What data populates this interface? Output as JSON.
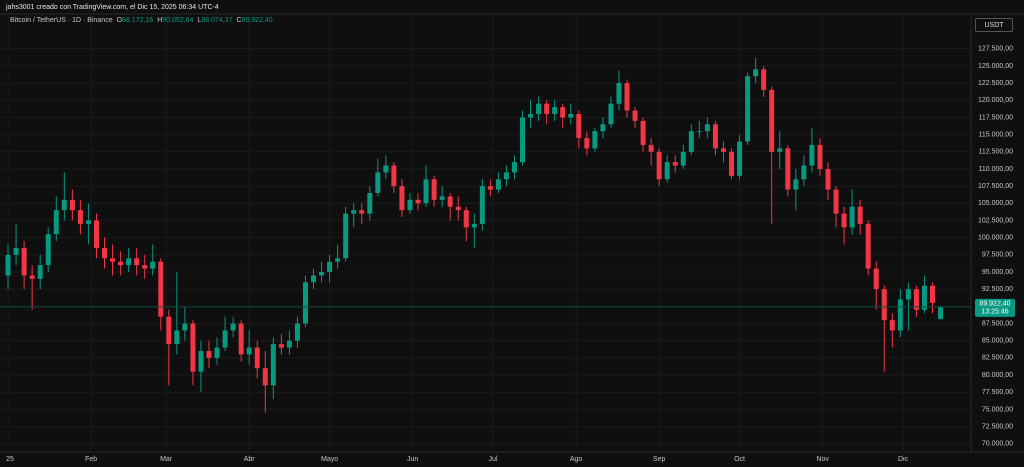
{
  "header": {
    "attribution": "jahs3001 creado con TradingView.com, el Dic 15, 2025 06:34 UTC-4",
    "currency_button": "USDT"
  },
  "chart_data": {
    "type": "candlestick",
    "title": "Bitcoin / TetherUS · 1D · Binance",
    "legend": [
      {
        "key": "O",
        "value": "88.172,16"
      },
      {
        "key": "H",
        "value": "90.052,64"
      },
      {
        "key": "L",
        "value": "88.074,37"
      },
      {
        "key": "C",
        "value": "89.922,40"
      }
    ],
    "colors": {
      "up": "#089981",
      "down": "#f23645"
    },
    "x": [
      0,
      3,
      6,
      9,
      12,
      15,
      18,
      21,
      24,
      27,
      30,
      33,
      36,
      39,
      42,
      45,
      48,
      51,
      54,
      57,
      60,
      63,
      66,
      69,
      72,
      75,
      78,
      81,
      84,
      87,
      90,
      93,
      96,
      99,
      102,
      105,
      108,
      111,
      114,
      117,
      120,
      123,
      126,
      129,
      132,
      135,
      138,
      141,
      144,
      147,
      150,
      153,
      156,
      159,
      162,
      165,
      168,
      171,
      174,
      177,
      180,
      183,
      186,
      189,
      192,
      195,
      198,
      201,
      204,
      207,
      210,
      213,
      216,
      219,
      222,
      225,
      228,
      231,
      234,
      237,
      240,
      243,
      246,
      249,
      252,
      255,
      258,
      261,
      264,
      267,
      270,
      273,
      276,
      279,
      282,
      285,
      288,
      291,
      294,
      297,
      300,
      303,
      306,
      309,
      312,
      315,
      318,
      321,
      324,
      327,
      330,
      333,
      336,
      339,
      342,
      345,
      348
    ],
    "open": [
      94500,
      97500,
      98500,
      94500,
      94000,
      96000,
      100500,
      104000,
      105500,
      104000,
      102000,
      102500,
      98500,
      97000,
      96500,
      96000,
      97000,
      96000,
      95500,
      96500,
      88500,
      84500,
      86500,
      87500,
      80500,
      83500,
      82500,
      84000,
      86500,
      87500,
      83000,
      84000,
      81000,
      78500,
      84500,
      84000,
      85000,
      87500,
      93500,
      94500,
      95000,
      96500,
      97000,
      103500,
      104000,
      103500,
      106500,
      109500,
      110500,
      107500,
      104000,
      105500,
      105000,
      108500,
      105500,
      106000,
      104500,
      104000,
      101500,
      102000,
      107500,
      107000,
      108500,
      109500,
      111000,
      117500,
      118000,
      119500,
      118000,
      119000,
      117500,
      118000,
      114500,
      113000,
      115500,
      116500,
      119500,
      122500,
      118500,
      117000,
      113500,
      112500,
      108500,
      111000,
      110500,
      112500,
      115500,
      115500,
      116500,
      113000,
      112500,
      109000,
      114000,
      123500,
      124500,
      121500,
      112500,
      113000,
      107000,
      108500,
      110500,
      113500,
      110000,
      107000,
      103500,
      101500,
      104500,
      102000,
      95500,
      92500,
      88000,
      86500,
      91000,
      92500,
      89500,
      93000,
      88172.16
    ],
    "high": [
      99000,
      102000,
      99500,
      96000,
      97500,
      101500,
      106000,
      109500,
      107000,
      105500,
      105000,
      103500,
      100000,
      99000,
      98000,
      98500,
      98500,
      97500,
      99000,
      97000,
      89500,
      95000,
      90000,
      88000,
      85000,
      85000,
      85500,
      88500,
      88500,
      88000,
      86500,
      85000,
      83500,
      85500,
      86000,
      86500,
      88500,
      94500,
      95500,
      96500,
      97500,
      99000,
      104500,
      105000,
      105000,
      107500,
      111500,
      112000,
      111000,
      108500,
      106500,
      106500,
      110500,
      109000,
      107500,
      106500,
      106000,
      104500,
      103500,
      108500,
      108500,
      109500,
      110500,
      112000,
      118500,
      120000,
      120500,
      120000,
      120000,
      119500,
      119500,
      118500,
      115500,
      116000,
      117500,
      120500,
      124300,
      123000,
      119000,
      117500,
      114500,
      113000,
      112000,
      112000,
      113500,
      116500,
      117000,
      117500,
      117000,
      114000,
      113000,
      115000,
      124000,
      126200,
      125000,
      122000,
      115500,
      113500,
      110000,
      112000,
      116000,
      114500,
      111000,
      107500,
      104500,
      107000,
      105500,
      102500,
      96500,
      93000,
      89000,
      92500,
      93500,
      93000,
      94500,
      93500,
      90052.64
    ],
    "low": [
      92500,
      96000,
      92500,
      89500,
      92500,
      95000,
      99500,
      102500,
      102500,
      100500,
      99000,
      97000,
      95500,
      94500,
      94500,
      95000,
      94500,
      94000,
      94500,
      86500,
      78500,
      83000,
      85000,
      78500,
      77500,
      81000,
      81500,
      83500,
      85500,
      82000,
      81500,
      79500,
      74500,
      76500,
      83000,
      83000,
      84000,
      87000,
      92500,
      93500,
      93500,
      95500,
      96500,
      101500,
      102000,
      102500,
      106000,
      108500,
      106500,
      103000,
      103500,
      104000,
      104500,
      104500,
      104500,
      102500,
      102500,
      99500,
      98500,
      101000,
      106000,
      106500,
      107500,
      108500,
      110500,
      116000,
      117000,
      116500,
      117000,
      116000,
      116500,
      113000,
      112000,
      112500,
      114500,
      116000,
      118500,
      117500,
      116000,
      112500,
      110500,
      107500,
      108000,
      109500,
      110000,
      112000,
      114500,
      114500,
      112000,
      111000,
      108500,
      108500,
      113500,
      122500,
      120500,
      102000,
      110000,
      106000,
      104000,
      107500,
      109500,
      109000,
      105500,
      101500,
      99000,
      100500,
      100500,
      94500,
      89500,
      80500,
      84000,
      85500,
      86500,
      88500,
      89000,
      89000,
      88074.37
    ],
    "close": [
      97500,
      98500,
      94500,
      94000,
      96000,
      100500,
      104000,
      105500,
      104000,
      102000,
      102500,
      98500,
      97000,
      96500,
      96000,
      97000,
      96000,
      95500,
      96500,
      88500,
      84500,
      86500,
      87500,
      80500,
      83500,
      82500,
      84000,
      86500,
      87500,
      83000,
      84000,
      81000,
      78500,
      84500,
      84000,
      85000,
      87500,
      93500,
      94500,
      95000,
      96500,
      97000,
      103500,
      104000,
      103500,
      106500,
      109500,
      110500,
      107500,
      104000,
      105500,
      105000,
      108500,
      105500,
      106000,
      104500,
      104000,
      101500,
      102000,
      107500,
      107000,
      108500,
      109500,
      111000,
      117500,
      118000,
      119500,
      118000,
      119000,
      117500,
      118000,
      114500,
      113000,
      115500,
      116500,
      119500,
      122500,
      118500,
      117000,
      113500,
      112500,
      108500,
      111000,
      110500,
      112500,
      115500,
      115500,
      116500,
      113000,
      112500,
      109000,
      114000,
      123500,
      124500,
      121500,
      112500,
      113000,
      107000,
      108500,
      110500,
      113500,
      110000,
      107000,
      103500,
      101500,
      104500,
      102000,
      95500,
      92500,
      88000,
      86500,
      91000,
      92500,
      89500,
      93000,
      90500,
      89922.4
    ],
    "xlim": [
      -3,
      359
    ],
    "xticks": [
      {
        "value": 0,
        "label": "25"
      },
      {
        "value": 31,
        "label": "Feb"
      },
      {
        "value": 59,
        "label": "Mar"
      },
      {
        "value": 90,
        "label": "Abr"
      },
      {
        "value": 120,
        "label": "Mayo"
      },
      {
        "value": 151,
        "label": "Jun"
      },
      {
        "value": 181,
        "label": "Jul"
      },
      {
        "value": 212,
        "label": "Ago"
      },
      {
        "value": 243,
        "label": "Sep"
      },
      {
        "value": 273,
        "label": "Oct"
      },
      {
        "value": 304,
        "label": "Nov"
      },
      {
        "value": 334,
        "label": "Dic"
      }
    ],
    "ylim": [
      68800,
      129500
    ],
    "yticks": [
      {
        "value": 70000,
        "label": "70.000,00"
      },
      {
        "value": 72500,
        "label": "72.500,00"
      },
      {
        "value": 75000,
        "label": "75.000,00"
      },
      {
        "value": 77500,
        "label": "77.500,00"
      },
      {
        "value": 80000,
        "label": "80.000,00"
      },
      {
        "value": 82500,
        "label": "82.500,00"
      },
      {
        "value": 85000,
        "label": "85.000,00"
      },
      {
        "value": 87500,
        "label": "87.500,00"
      },
      {
        "value": 90000,
        "label": "90.000,00"
      },
      {
        "value": 92500,
        "label": "92.500,00"
      },
      {
        "value": 95000,
        "label": "95.000,00"
      },
      {
        "value": 97500,
        "label": "97.500,00"
      },
      {
        "value": 100000,
        "label": "100.000,00"
      },
      {
        "value": 102500,
        "label": "102.500,00"
      },
      {
        "value": 105000,
        "label": "105.000,00"
      },
      {
        "value": 107500,
        "label": "107.500,00"
      },
      {
        "value": 110000,
        "label": "110.000,00"
      },
      {
        "value": 112500,
        "label": "112.500,00"
      },
      {
        "value": 115000,
        "label": "115.000,00"
      },
      {
        "value": 117500,
        "label": "117.500,00"
      },
      {
        "value": 120000,
        "label": "120.000,00"
      },
      {
        "value": 122500,
        "label": "122.500,00"
      },
      {
        "value": 125000,
        "label": "125.000,00"
      },
      {
        "value": 127500,
        "label": "127.500,00"
      }
    ],
    "grid": true,
    "last_price": {
      "value": 89922.4,
      "label": "89.922,40"
    },
    "countdown": "13:25:46"
  }
}
